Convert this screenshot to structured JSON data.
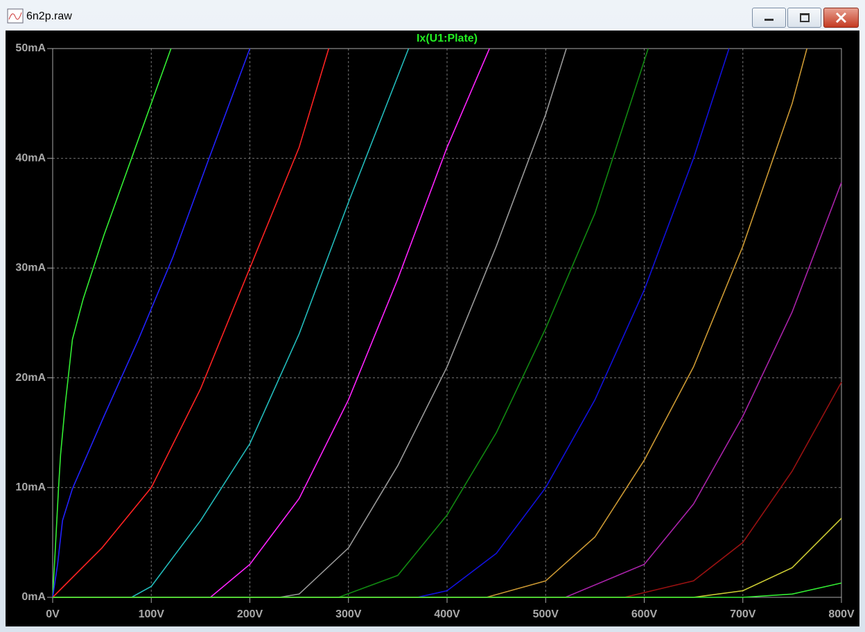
{
  "window": {
    "title": "6n2p.raw"
  },
  "chart_data": {
    "type": "line",
    "title": "Ix(U1:Plate)",
    "title_color": "#22ee22",
    "xlim": [
      0,
      800
    ],
    "ylim": [
      0,
      50
    ],
    "grid": true,
    "xticks": [
      {
        "value": 0,
        "label": "0V"
      },
      {
        "value": 100,
        "label": "100V"
      },
      {
        "value": 200,
        "label": "200V"
      },
      {
        "value": 300,
        "label": "300V"
      },
      {
        "value": 400,
        "label": "400V"
      },
      {
        "value": 500,
        "label": "500V"
      },
      {
        "value": 600,
        "label": "600V"
      },
      {
        "value": 700,
        "label": "700V"
      },
      {
        "value": 800,
        "label": "800V"
      }
    ],
    "yticks": [
      {
        "value": 0,
        "label": "0mA"
      },
      {
        "value": 10,
        "label": "10mA"
      },
      {
        "value": 20,
        "label": "20mA"
      },
      {
        "value": 30,
        "label": "30mA"
      },
      {
        "value": 40,
        "label": "40mA"
      },
      {
        "value": 50,
        "label": "50mA"
      }
    ],
    "series": [
      {
        "color": "#33ee33",
        "x": [
          0,
          3,
          6,
          8,
          13,
          20,
          31,
          52,
          80,
          120
        ],
        "values": [
          0,
          5,
          10,
          13,
          17.8,
          23.5,
          27.2,
          33,
          40,
          50
        ]
      },
      {
        "color": "#2222ff",
        "x": [
          0,
          5,
          10,
          20,
          52,
          87,
          122,
          157,
          200
        ],
        "values": [
          0,
          3,
          7,
          9.9,
          16.5,
          23.5,
          31,
          39.6,
          50
        ]
      },
      {
        "color": "#ff2222",
        "x": [
          0,
          50,
          100,
          150,
          200,
          250,
          280
        ],
        "values": [
          0,
          4.5,
          10,
          19,
          30,
          41,
          50
        ]
      },
      {
        "color": "#22bbbb",
        "x": [
          0,
          80,
          100,
          150,
          200,
          250,
          300,
          361
        ],
        "values": [
          0,
          0,
          1,
          7,
          14,
          24,
          36,
          50
        ]
      },
      {
        "color": "#ff22ff",
        "x": [
          0,
          160,
          200,
          250,
          300,
          350,
          400,
          443
        ],
        "values": [
          0,
          0,
          3,
          9,
          18,
          29,
          41,
          50
        ]
      },
      {
        "color": "#999999",
        "x": [
          0,
          230,
          250,
          300,
          350,
          400,
          450,
          500,
          521
        ],
        "values": [
          0,
          0,
          0.3,
          4.5,
          12,
          21,
          32,
          44,
          50
        ]
      },
      {
        "color": "#118811",
        "x": [
          0,
          290,
          350,
          400,
          450,
          500,
          550,
          604
        ],
        "values": [
          0,
          0,
          2,
          7.5,
          15,
          24.5,
          35,
          50
        ]
      },
      {
        "color": "#1111dd",
        "x": [
          0,
          370,
          400,
          450,
          500,
          550,
          600,
          650,
          686
        ],
        "values": [
          0,
          0,
          0.6,
          4,
          10,
          18,
          28,
          40,
          50
        ]
      },
      {
        "color": "#cc9933",
        "x": [
          0,
          440,
          500,
          550,
          600,
          650,
          700,
          750,
          765
        ],
        "values": [
          0,
          0,
          1.5,
          5.5,
          12.5,
          21,
          32,
          45,
          50
        ]
      },
      {
        "color": "#aa22aa",
        "x": [
          0,
          520,
          600,
          650,
          700,
          750,
          800
        ],
        "values": [
          0,
          0,
          3,
          8.5,
          16.5,
          26,
          37.8
        ]
      },
      {
        "color": "#991111",
        "x": [
          0,
          580,
          650,
          700,
          750,
          800
        ],
        "values": [
          0,
          0,
          1.5,
          5,
          11.5,
          19.6
        ]
      },
      {
        "color": "#cccc33",
        "x": [
          0,
          650,
          700,
          750,
          800
        ],
        "values": [
          0,
          0,
          0.6,
          2.7,
          7.2
        ]
      },
      {
        "color": "#33ee33",
        "x": [
          0,
          700,
          750,
          800
        ],
        "values": [
          0,
          0,
          0.3,
          1.3
        ]
      }
    ]
  }
}
